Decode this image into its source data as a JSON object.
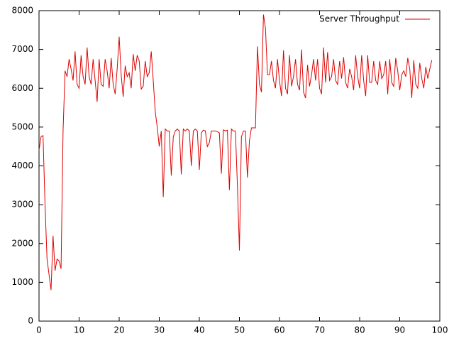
{
  "chart_data": {
    "type": "line",
    "series": [
      {
        "name": "Server Throughput",
        "color": "#e00000",
        "values": [
          4400,
          4750,
          4780,
          3000,
          1600,
          1200,
          800,
          2200,
          1300,
          1600,
          1550,
          1350,
          4900,
          6450,
          6300,
          6750,
          6500,
          6200,
          6950,
          6100,
          6000,
          6850,
          6300,
          6100,
          7050,
          6300,
          6100,
          6750,
          6200,
          5650,
          6750,
          6100,
          6050,
          6750,
          6450,
          6000,
          6780,
          6100,
          5850,
          6500,
          7330,
          6350,
          5780,
          6580,
          6300,
          6400,
          6000,
          6880,
          6450,
          6850,
          6700,
          5980,
          6050,
          6700,
          6300,
          6400,
          6950,
          6200,
          5400,
          5000,
          4500,
          4900,
          3200,
          4950,
          4900,
          4900,
          3750,
          4750,
          4900,
          4950,
          4900,
          3780,
          4950,
          4900,
          4950,
          4900,
          4000,
          4900,
          4950,
          4900,
          3900,
          4850,
          4920,
          4900,
          4500,
          4600,
          4900,
          4900,
          4900,
          4880,
          4850,
          3800,
          4930,
          4900,
          4920,
          3380,
          4950,
          4900,
          4900,
          3500,
          1820,
          4750,
          4900,
          4900,
          3700,
          4650,
          4980,
          4980,
          4980,
          7080,
          6100,
          5900,
          7900,
          7550,
          6350,
          6350,
          6700,
          6200,
          6000,
          6750,
          6200,
          5800,
          6980,
          6000,
          5850,
          6850,
          6050,
          6300,
          6750,
          6100,
          5950,
          7000,
          5900,
          5750,
          6600,
          6050,
          6350,
          6750,
          6200,
          6750,
          6000,
          5850,
          7050,
          6150,
          6930,
          6200,
          6300,
          6750,
          6200,
          6100,
          6700,
          6250,
          6800,
          6150,
          6000,
          6500,
          6300,
          5950,
          6850,
          6300,
          6000,
          6850,
          6200,
          5800,
          6850,
          6150,
          6150,
          6700,
          6200,
          6100,
          6700,
          6250,
          6350,
          6700,
          5850,
          6750,
          6150,
          6050,
          6780,
          6450,
          5950,
          6350,
          6450,
          6300,
          6780,
          6500,
          5750,
          6720,
          6100,
          6000,
          6650,
          6250,
          6000,
          6550,
          6250,
          6500,
          6720
        ]
      }
    ],
    "x": [
      0,
      0.5,
      1,
      1.5,
      2,
      2.5,
      3,
      3.5,
      4,
      4.5,
      5,
      5.5,
      6,
      6.5,
      7,
      7.5,
      8,
      8.5,
      9,
      9.5,
      10,
      10.5,
      11,
      11.5,
      12,
      12.5,
      13,
      13.5,
      14,
      14.5,
      15,
      15.5,
      16,
      16.5,
      17,
      17.5,
      18,
      18.5,
      19,
      19.5,
      20,
      20.5,
      21,
      21.5,
      22,
      22.5,
      23,
      23.5,
      24,
      24.5,
      25,
      25.5,
      26,
      26.5,
      27,
      27.5,
      28,
      28.5,
      29,
      29.5,
      30,
      30.5,
      31,
      31.5,
      32,
      32.5,
      33,
      33.5,
      34,
      34.5,
      35,
      35.5,
      36,
      36.5,
      37,
      37.5,
      38,
      38.5,
      39,
      39.5,
      40,
      40.5,
      41,
      41.5,
      42,
      42.5,
      43,
      43.5,
      44,
      44.5,
      45,
      45.5,
      46,
      46.5,
      47,
      47.5,
      48,
      48.5,
      49,
      49.5,
      50,
      50.5,
      51,
      51.5,
      52,
      52.5,
      53,
      53.5,
      54,
      54.5,
      55,
      55.5,
      56,
      56.5,
      57,
      57.5,
      58,
      58.5,
      59,
      59.5,
      60,
      60.5,
      61,
      61.5,
      62,
      62.5,
      63,
      63.5,
      64,
      64.5,
      65,
      65.5,
      66,
      66.5,
      67,
      67.5,
      68,
      68.5,
      69,
      69.5,
      70,
      70.5,
      71,
      71.5,
      72,
      72.5,
      73,
      73.5,
      74,
      74.5,
      75,
      75.5,
      76,
      76.5,
      77,
      77.5,
      78,
      78.5,
      79,
      79.5,
      80,
      80.5,
      81,
      81.5,
      82,
      82.5,
      83,
      83.5,
      84,
      84.5,
      85,
      85.5,
      86,
      86.5,
      87,
      87.5,
      88,
      88.5,
      89,
      89.5,
      90,
      90.5,
      91,
      91.5,
      92,
      92.5,
      93,
      93.5,
      94,
      94.5,
      95,
      95.5,
      96,
      96.5,
      97,
      97.5,
      98
    ],
    "xlim": [
      0,
      100
    ],
    "xticks": [
      0,
      10,
      20,
      30,
      40,
      50,
      60,
      70,
      80,
      90,
      100
    ],
    "ylim": [
      0,
      8000
    ],
    "yticks": [
      0,
      1000,
      2000,
      3000,
      4000,
      5000,
      6000,
      7000,
      8000
    ],
    "legend": "top-right"
  }
}
